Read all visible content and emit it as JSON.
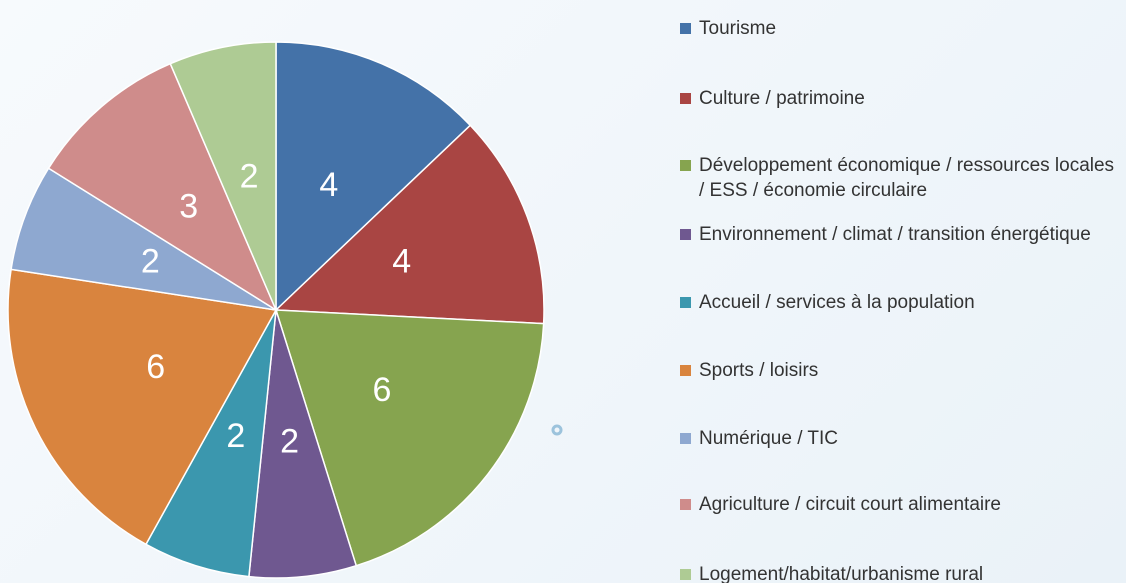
{
  "chart_data": {
    "type": "pie",
    "categories": [
      "Tourisme",
      "Culture / patrimoine",
      "Développement économique / ressources locales / ESS / économie circulaire",
      "Environnement / climat / transition énergétique",
      "Accueil / services à la population",
      "Sports / loisirs",
      "Numérique / TIC",
      "Agriculture / circuit court alimentaire",
      "Logement/habitat/urbanisme rural"
    ],
    "values": [
      4,
      4,
      6,
      2,
      2,
      6,
      2,
      3,
      2
    ],
    "colors": [
      "#4472a8",
      "#a94543",
      "#86a44f",
      "#6f5890",
      "#3b97ae",
      "#d9843e",
      "#8ea8d0",
      "#cf8c8b",
      "#aecb94"
    ]
  }
}
